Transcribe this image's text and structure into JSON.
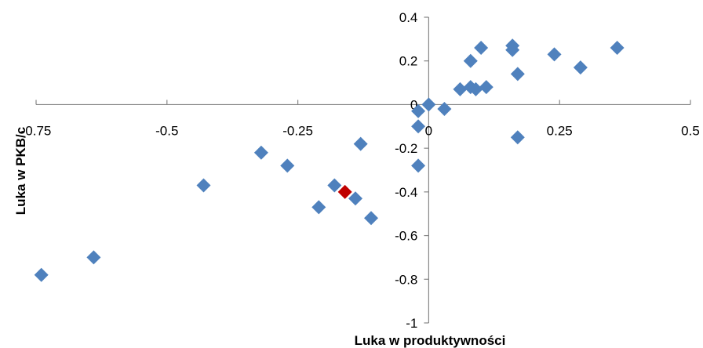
{
  "chart_data": {
    "type": "scatter",
    "title": "",
    "xlabel": "Luka w produktywności",
    "ylabel": "Luka w PKB/c",
    "xlim": [
      -0.75,
      0.5
    ],
    "ylim": [
      -1,
      0.4
    ],
    "x_ticks": [
      -0.75,
      -0.5,
      -0.25,
      0,
      0.25,
      0.5
    ],
    "x_tick_labels": [
      "-0.75",
      "-0.5",
      "-0.25",
      "0",
      "0.25",
      "0.5"
    ],
    "y_ticks": [
      0.4,
      0.2,
      0,
      -0.2,
      -0.4,
      -0.6,
      -0.8,
      -1
    ],
    "y_tick_labels": [
      "0.4",
      "0.2",
      "0",
      "-0.2",
      "-0.4",
      "-0.6",
      "-0.8",
      "-1"
    ],
    "grid": false,
    "legend": "none",
    "colors": {
      "series": "#4f81bd",
      "highlight": "#c00000",
      "axis": "#868686"
    },
    "series": [
      {
        "marker": "diamond",
        "color": "#4f81bd",
        "points": [
          {
            "x": -0.74,
            "y": -0.78
          },
          {
            "x": -0.64,
            "y": -0.7
          },
          {
            "x": -0.43,
            "y": -0.37
          },
          {
            "x": -0.32,
            "y": -0.22
          },
          {
            "x": -0.27,
            "y": -0.28
          },
          {
            "x": -0.21,
            "y": -0.47
          },
          {
            "x": -0.18,
            "y": -0.37
          },
          {
            "x": -0.14,
            "y": -0.43
          },
          {
            "x": -0.13,
            "y": -0.18
          },
          {
            "x": -0.11,
            "y": -0.52
          },
          {
            "x": -0.02,
            "y": -0.28
          },
          {
            "x": -0.02,
            "y": -0.1
          },
          {
            "x": -0.02,
            "y": -0.03
          },
          {
            "x": 0.0,
            "y": 0.0
          },
          {
            "x": 0.03,
            "y": -0.02
          },
          {
            "x": 0.06,
            "y": 0.07
          },
          {
            "x": 0.08,
            "y": 0.08
          },
          {
            "x": 0.08,
            "y": 0.2
          },
          {
            "x": 0.09,
            "y": 0.07
          },
          {
            "x": 0.1,
            "y": 0.26
          },
          {
            "x": 0.11,
            "y": 0.08
          },
          {
            "x": 0.16,
            "y": 0.27
          },
          {
            "x": 0.16,
            "y": 0.25
          },
          {
            "x": 0.17,
            "y": 0.14
          },
          {
            "x": 0.17,
            "y": -0.15
          },
          {
            "x": 0.24,
            "y": 0.23
          },
          {
            "x": 0.29,
            "y": 0.17
          },
          {
            "x": 0.36,
            "y": 0.26
          }
        ]
      },
      {
        "marker": "diamond",
        "color": "#c00000",
        "points": [
          {
            "x": -0.16,
            "y": -0.4
          }
        ]
      }
    ]
  }
}
